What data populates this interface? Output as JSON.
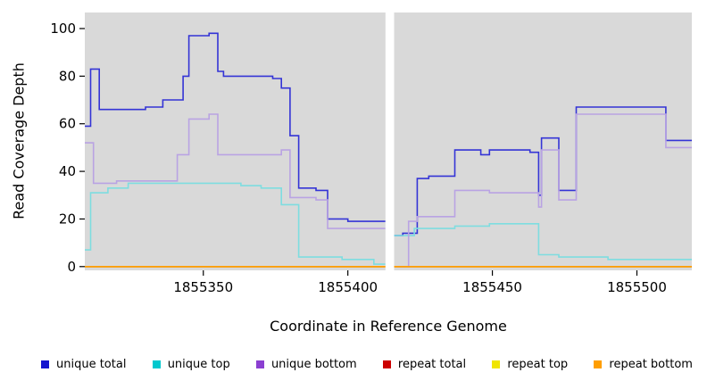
{
  "chart_data": {
    "type": "line",
    "step": true,
    "title": "",
    "xlabel": "Coordinate in Reference Genome",
    "ylabel": "Read Coverage Depth",
    "xlim": [
      1855309,
      1855519
    ],
    "ylim": [
      0,
      100
    ],
    "xticks": [
      1855350,
      1855400,
      1855450,
      1855500
    ],
    "yticks": [
      0,
      20,
      40,
      60,
      80,
      100
    ],
    "grid": false,
    "legend_position": "bottom",
    "plot_background": "#d9d9d9",
    "gap": {
      "x_start": 1855413,
      "x_end": 1855416
    },
    "series": [
      {
        "name": "unique total",
        "color": "#1515cf",
        "line_color": "#3434d6",
        "segments": [
          [
            [
              1855309,
              59
            ],
            [
              1855311,
              83
            ],
            [
              1855314,
              66
            ],
            [
              1855330,
              67
            ],
            [
              1855336,
              70
            ],
            [
              1855343,
              80
            ],
            [
              1855345,
              97
            ],
            [
              1855352,
              98
            ],
            [
              1855355,
              82
            ],
            [
              1855357,
              80
            ],
            [
              1855374,
              79
            ],
            [
              1855377,
              75
            ],
            [
              1855380,
              55
            ],
            [
              1855383,
              33
            ],
            [
              1855389,
              32
            ],
            [
              1855393,
              20
            ],
            [
              1855400,
              19
            ],
            [
              1855413,
              19
            ]
          ],
          [
            [
              1855416,
              13
            ],
            [
              1855419,
              14
            ],
            [
              1855424,
              37
            ],
            [
              1855428,
              38
            ],
            [
              1855437,
              49
            ],
            [
              1855444,
              49
            ],
            [
              1855446,
              47
            ],
            [
              1855449,
              49
            ],
            [
              1855463,
              48
            ],
            [
              1855466,
              30
            ],
            [
              1855467,
              54
            ],
            [
              1855472,
              54
            ],
            [
              1855473,
              32
            ],
            [
              1855478,
              32
            ],
            [
              1855479,
              67
            ],
            [
              1855509,
              67
            ],
            [
              1855510,
              53
            ],
            [
              1855519,
              53
            ]
          ]
        ]
      },
      {
        "name": "unique top",
        "color": "#00c8ce",
        "line_color": "#7edde0",
        "segments": [
          [
            [
              1855309,
              7
            ],
            [
              1855311,
              31
            ],
            [
              1855317,
              33
            ],
            [
              1855324,
              35
            ],
            [
              1855363,
              34
            ],
            [
              1855370,
              33
            ],
            [
              1855377,
              26
            ],
            [
              1855383,
              4
            ],
            [
              1855398,
              3
            ],
            [
              1855409,
              1
            ],
            [
              1855413,
              1
            ]
          ],
          [
            [
              1855416,
              13
            ],
            [
              1855423,
              16
            ],
            [
              1855437,
              17
            ],
            [
              1855449,
              18
            ],
            [
              1855463,
              18
            ],
            [
              1855466,
              5
            ],
            [
              1855473,
              4
            ],
            [
              1855490,
              3
            ],
            [
              1855519,
              3
            ]
          ]
        ]
      },
      {
        "name": "unique bottom",
        "color": "#8b3fd1",
        "line_color": "#b9a3e3",
        "segments": [
          [
            [
              1855309,
              52
            ],
            [
              1855312,
              35
            ],
            [
              1855320,
              36
            ],
            [
              1855341,
              47
            ],
            [
              1855345,
              62
            ],
            [
              1855352,
              64
            ],
            [
              1855355,
              47
            ],
            [
              1855377,
              49
            ],
            [
              1855380,
              29
            ],
            [
              1855389,
              28
            ],
            [
              1855393,
              16
            ],
            [
              1855413,
              16
            ]
          ],
          [
            [
              1855416,
              0
            ],
            [
              1855421,
              19
            ],
            [
              1855424,
              21
            ],
            [
              1855437,
              32
            ],
            [
              1855449,
              31
            ],
            [
              1855463,
              31
            ],
            [
              1855466,
              25
            ],
            [
              1855467,
              49
            ],
            [
              1855472,
              49
            ],
            [
              1855473,
              28
            ],
            [
              1855478,
              28
            ],
            [
              1855479,
              64
            ],
            [
              1855509,
              64
            ],
            [
              1855510,
              50
            ],
            [
              1855519,
              50
            ]
          ]
        ]
      },
      {
        "name": "repeat total",
        "color": "#cc0000",
        "line_color": "#cc0000",
        "segments": [
          [
            [
              1855309,
              0
            ],
            [
              1855413,
              0
            ]
          ],
          [
            [
              1855416,
              0
            ],
            [
              1855519,
              0
            ]
          ]
        ]
      },
      {
        "name": "repeat top",
        "color": "#f0e500",
        "line_color": "#f0e500",
        "segments": [
          [
            [
              1855309,
              0
            ],
            [
              1855413,
              0
            ]
          ],
          [
            [
              1855416,
              0
            ],
            [
              1855519,
              0
            ]
          ]
        ]
      },
      {
        "name": "repeat bottom",
        "color": "#ff9e00",
        "line_color": "#ff9e00",
        "segments": [
          [
            [
              1855309,
              0
            ],
            [
              1855413,
              0
            ]
          ],
          [
            [
              1855416,
              0
            ],
            [
              1855519,
              0
            ]
          ]
        ]
      }
    ]
  }
}
